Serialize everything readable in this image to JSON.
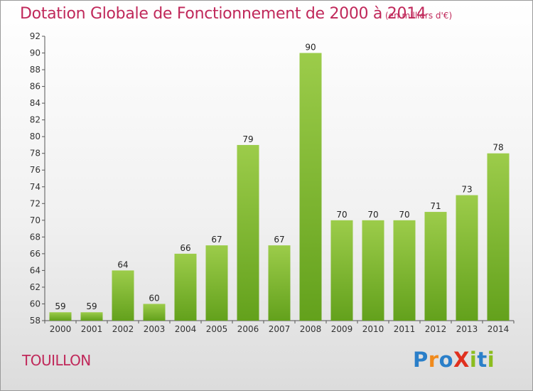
{
  "title": "Dotation Globale de Fonctionnement de 2000 à 2014",
  "subtitle": "(en milliers d'€)",
  "commune": "TOUILLON",
  "logo": {
    "letters": [
      {
        "char": "P",
        "color": "#2a7fc9"
      },
      {
        "char": "r",
        "color": "#f08a1c"
      },
      {
        "char": "o",
        "color": "#2a7fc9"
      },
      {
        "char": "X",
        "color": "#e0301e"
      },
      {
        "char": "i",
        "color": "#8cbd1f"
      },
      {
        "char": "t",
        "color": "#2a7fc9"
      },
      {
        "char": "i",
        "color": "#8cbd1f"
      }
    ]
  },
  "colors": {
    "bar_light": "#9ccc4a",
    "bar_dark": "#63a11c",
    "title": "#c0285a"
  },
  "chart_data": {
    "type": "bar",
    "title": "Dotation Globale de Fonctionnement de 2000 à 2014",
    "subtitle": "(en milliers d'€)",
    "xlabel": "",
    "ylabel": "",
    "categories": [
      "2000",
      "2001",
      "2002",
      "2003",
      "2004",
      "2005",
      "2006",
      "2007",
      "2008",
      "2009",
      "2010",
      "2011",
      "2012",
      "2013",
      "2014"
    ],
    "values": [
      59,
      59,
      64,
      60,
      66,
      67,
      79,
      67,
      90,
      70,
      70,
      70,
      71,
      73,
      78
    ],
    "ylim": [
      58,
      92
    ],
    "yticks": [
      58,
      60,
      62,
      64,
      66,
      68,
      70,
      72,
      74,
      76,
      78,
      80,
      82,
      84,
      86,
      88,
      90,
      92
    ],
    "grid": false,
    "legend": "none"
  }
}
